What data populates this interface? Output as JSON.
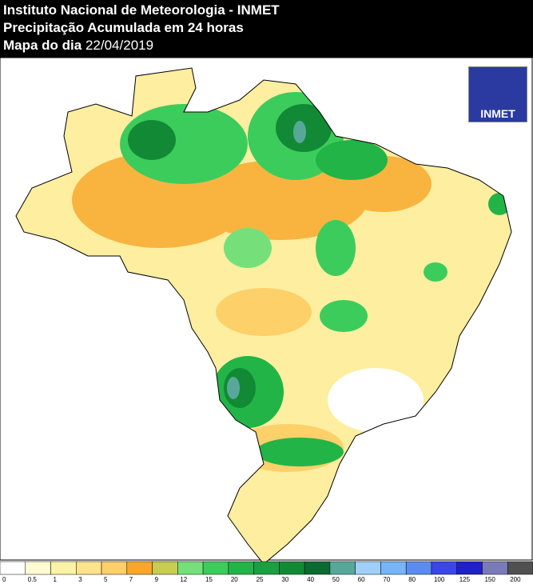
{
  "header": {
    "line1": "Instituto Nacional de Meteorologia - INMET",
    "line2": "Precipitação Acumulada em 24 horas",
    "line3_label": "Mapa do dia",
    "line3_date": "22/04/2019"
  },
  "logo": {
    "text": "INMET"
  },
  "legend": {
    "labels": [
      0,
      0.5,
      1,
      3,
      5,
      7,
      9,
      12,
      15,
      20,
      25,
      30,
      40,
      50,
      60,
      70,
      80,
      100,
      125,
      150,
      200
    ],
    "colors": [
      "#ffffff",
      "#fefbd2",
      "#fdf3a6",
      "#fde38b",
      "#fdd06a",
      "#f9a72a",
      "#c8cc50",
      "#75e07a",
      "#3ccc5c",
      "#22b447",
      "#1aa040",
      "#128a35",
      "#0a6b32",
      "#58a89a",
      "#a0d0f8",
      "#78b4f8",
      "#5a8cf0",
      "#3a46e6",
      "#2020c8",
      "#7a7ab8",
      "#505050"
    ]
  }
}
